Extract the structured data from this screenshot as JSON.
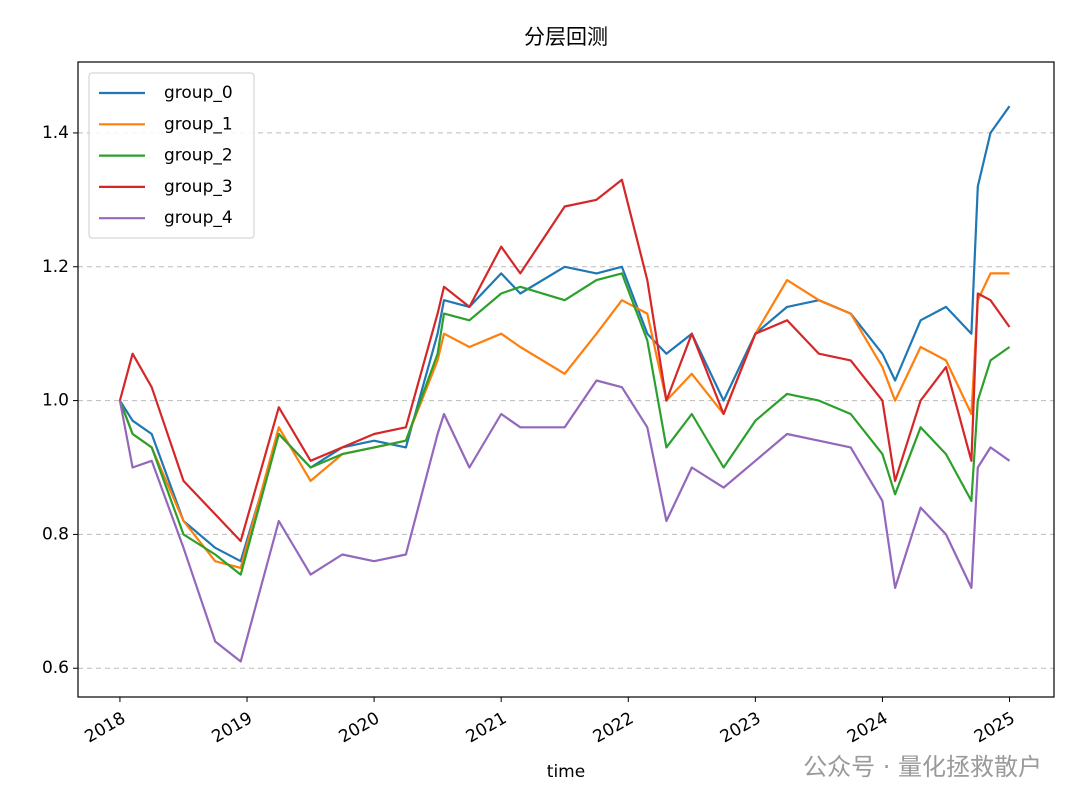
{
  "chart_data": {
    "type": "line",
    "title": "分层回测",
    "xlabel": "time",
    "watermark": "公众号 · 量化拯救散户",
    "x": [
      2018.0,
      2018.1,
      2018.25,
      2018.5,
      2018.75,
      2018.95,
      2019.25,
      2019.5,
      2019.75,
      2020.0,
      2020.25,
      2020.5,
      2020.55,
      2020.75,
      2021.0,
      2021.15,
      2021.5,
      2021.75,
      2021.95,
      2022.15,
      2022.3,
      2022.5,
      2022.75,
      2023.0,
      2023.25,
      2023.5,
      2023.75,
      2024.0,
      2024.1,
      2024.3,
      2024.5,
      2024.7,
      2024.75,
      2024.85,
      2025.0
    ],
    "series": [
      {
        "name": "group_0",
        "color": "#1f77b4",
        "values": [
          1.0,
          0.97,
          0.95,
          0.82,
          0.78,
          0.76,
          0.95,
          0.9,
          0.93,
          0.94,
          0.93,
          1.1,
          1.15,
          1.14,
          1.19,
          1.16,
          1.2,
          1.19,
          1.2,
          1.1,
          1.07,
          1.1,
          1.0,
          1.1,
          1.14,
          1.15,
          1.13,
          1.07,
          1.03,
          1.12,
          1.14,
          1.1,
          1.32,
          1.4,
          1.44
        ]
      },
      {
        "name": "group_1",
        "color": "#ff7f0e",
        "values": [
          1.0,
          0.95,
          0.93,
          0.82,
          0.76,
          0.75,
          0.96,
          0.88,
          0.92,
          0.93,
          0.94,
          1.06,
          1.1,
          1.08,
          1.1,
          1.08,
          1.04,
          1.1,
          1.15,
          1.13,
          1.0,
          1.04,
          0.98,
          1.1,
          1.18,
          1.15,
          1.13,
          1.05,
          1.0,
          1.08,
          1.06,
          0.98,
          1.15,
          1.19,
          1.19
        ]
      },
      {
        "name": "group_2",
        "color": "#2ca02c",
        "values": [
          1.0,
          0.95,
          0.93,
          0.8,
          0.77,
          0.74,
          0.95,
          0.9,
          0.92,
          0.93,
          0.94,
          1.07,
          1.13,
          1.12,
          1.16,
          1.17,
          1.15,
          1.18,
          1.19,
          1.09,
          0.93,
          0.98,
          0.9,
          0.97,
          1.01,
          1.0,
          0.98,
          0.92,
          0.86,
          0.96,
          0.92,
          0.85,
          1.0,
          1.06,
          1.08
        ]
      },
      {
        "name": "group_3",
        "color": "#d62728",
        "values": [
          1.0,
          1.07,
          1.02,
          0.88,
          0.83,
          0.79,
          0.99,
          0.91,
          0.93,
          0.95,
          0.96,
          1.13,
          1.17,
          1.14,
          1.23,
          1.19,
          1.29,
          1.3,
          1.33,
          1.18,
          1.0,
          1.1,
          0.98,
          1.1,
          1.12,
          1.07,
          1.06,
          1.0,
          0.88,
          1.0,
          1.05,
          0.91,
          1.16,
          1.15,
          1.11
        ]
      },
      {
        "name": "group_4",
        "color": "#9467bd",
        "values": [
          1.0,
          0.9,
          0.91,
          0.78,
          0.64,
          0.61,
          0.82,
          0.74,
          0.77,
          0.76,
          0.77,
          0.95,
          0.98,
          0.9,
          0.98,
          0.96,
          0.96,
          1.03,
          1.02,
          0.96,
          0.82,
          0.9,
          0.87,
          0.91,
          0.95,
          0.94,
          0.93,
          0.85,
          0.72,
          0.84,
          0.8,
          0.72,
          0.9,
          0.93,
          0.91
        ]
      }
    ],
    "xlim": [
      2017.67,
      2025.35
    ],
    "xticks": [
      2018,
      2019,
      2020,
      2021,
      2022,
      2023,
      2024,
      2025
    ],
    "ylim": [
      0.557,
      1.506
    ],
    "yticks": [
      0.6,
      0.8,
      {
        "value": 1.0,
        "label": "1.0"
      },
      1.2,
      1.4
    ],
    "grid": true,
    "legend": "upper left"
  }
}
